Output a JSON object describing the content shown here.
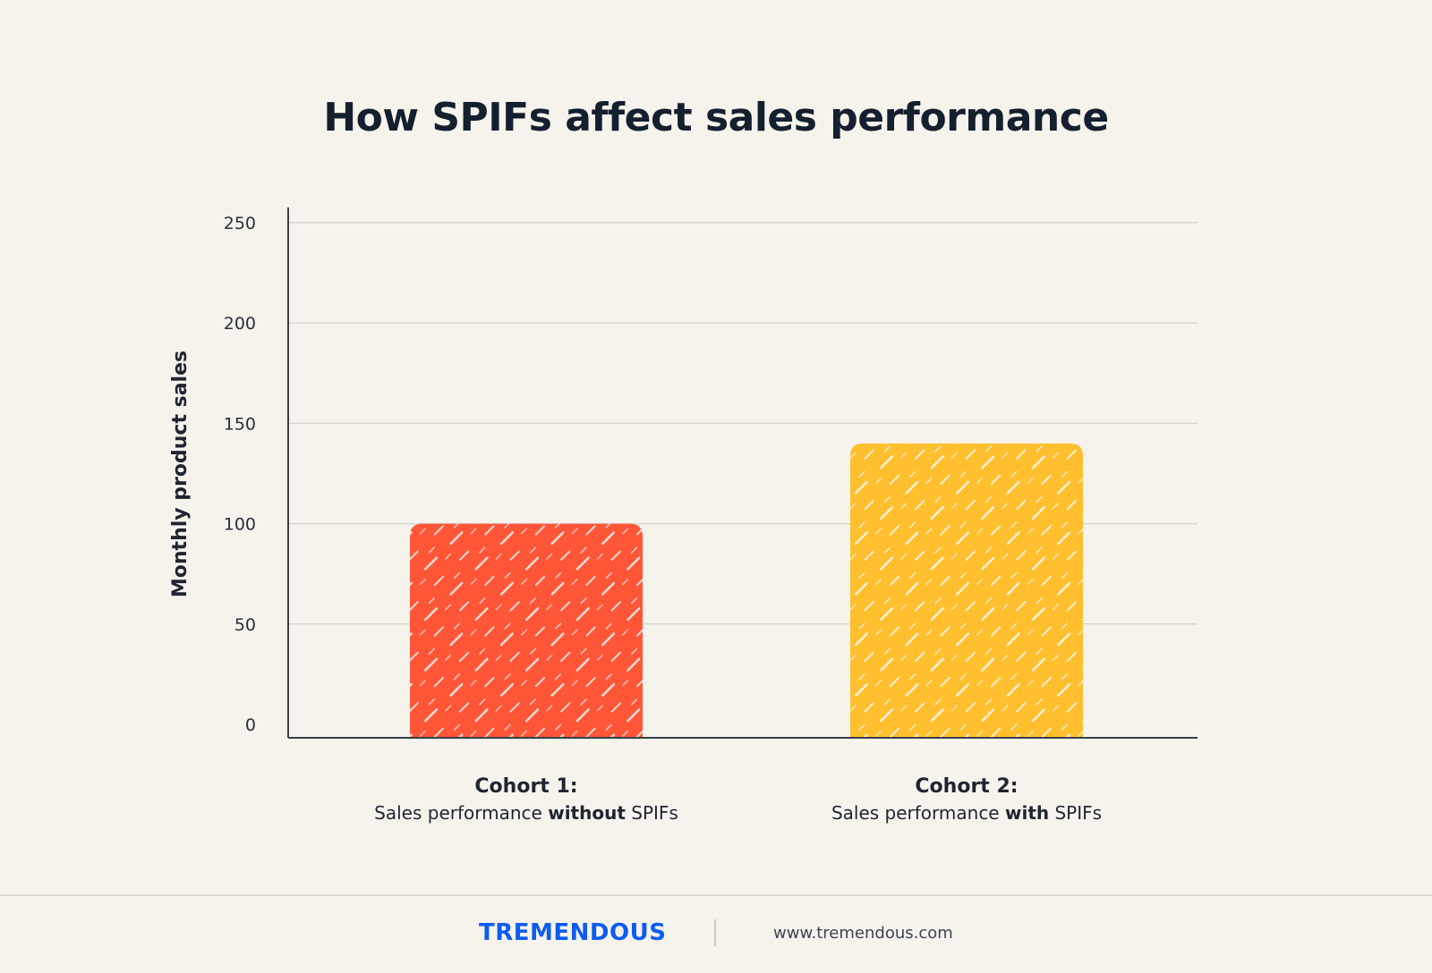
{
  "colors": {
    "background": "#f6f3ed",
    "bar_cohort_1": "#ff5638",
    "bar_cohort_2": "#ffbf2f",
    "brand": "#0d5cf0",
    "grid": "#d9d6d0",
    "axis": "#3a3f47"
  },
  "chart_data": {
    "type": "bar",
    "title": "How SPIFs affect sales performance",
    "ylabel": "Monthly product sales",
    "xlabel": "",
    "ylim": [
      0,
      250
    ],
    "yticks": [
      0,
      50,
      100,
      150,
      200,
      250
    ],
    "grid": true,
    "categories": [
      {
        "name": "Cohort 1:",
        "desc_prefix": "Sales performance ",
        "desc_bold": "without",
        "desc_suffix": " SPIFs"
      },
      {
        "name": "Cohort 2:",
        "desc_prefix": "Sales performance ",
        "desc_bold": "with",
        "desc_suffix": " SPIFs"
      }
    ],
    "values": [
      100,
      140
    ]
  },
  "footer": {
    "brand": "TREMENDOUS",
    "url": "www.tremendous.com"
  }
}
